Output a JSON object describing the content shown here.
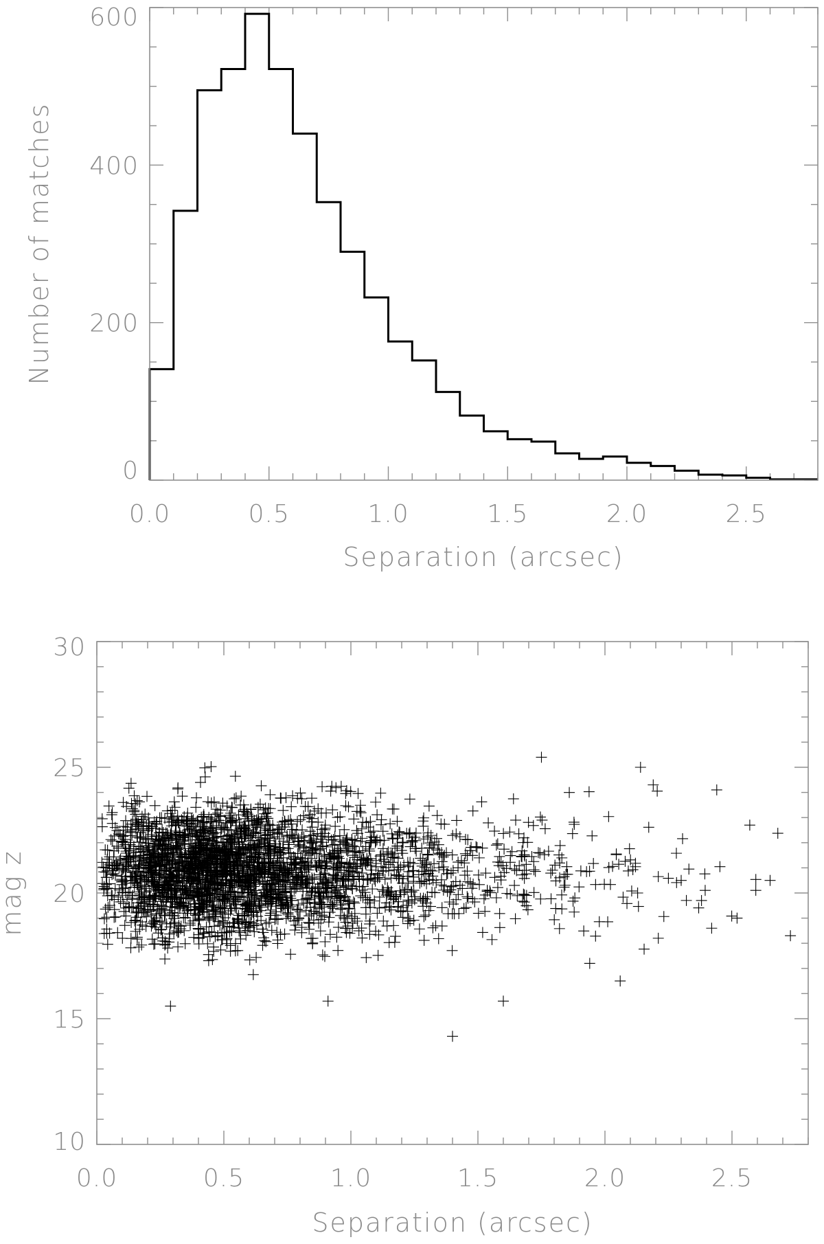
{
  "chart_data": [
    {
      "type": "bar",
      "style": "step histogram",
      "xlabel": "Separation (arcsec)",
      "ylabel": "Number of matches",
      "xlim": [
        0.0,
        2.8
      ],
      "ylim": [
        0,
        600
      ],
      "x_ticks": [
        "0.0",
        "0.5",
        "1.0",
        "1.5",
        "2.0",
        "2.5"
      ],
      "y_ticks": [
        "0",
        "200",
        "400",
        "600"
      ],
      "bin_edges": [
        0.0,
        0.1,
        0.2,
        0.3,
        0.4,
        0.5,
        0.6,
        0.7,
        0.8,
        0.9,
        1.0,
        1.1,
        1.2,
        1.3,
        1.4,
        1.5,
        1.6,
        1.7,
        1.8,
        1.9,
        2.0,
        2.1,
        2.2,
        2.3,
        2.4,
        2.5,
        2.6,
        2.7,
        2.8
      ],
      "values": [
        141,
        342,
        495,
        522,
        592,
        522,
        440,
        353,
        290,
        232,
        176,
        152,
        112,
        82,
        62,
        52,
        49,
        34,
        27,
        30,
        22,
        18,
        12,
        7,
        6,
        3,
        1,
        1
      ],
      "grid": false
    },
    {
      "type": "scatter",
      "marker": "+",
      "xlabel": "Separation (arcsec)",
      "ylabel": "mag z",
      "xlim": [
        0.0,
        2.8
      ],
      "ylim": [
        10,
        30
      ],
      "x_ticks": [
        "0.0",
        "0.5",
        "1.0",
        "1.5",
        "2.0",
        "2.5"
      ],
      "y_ticks": [
        "10",
        "15",
        "20",
        "25",
        "30"
      ],
      "approx_point_count": 3200,
      "core_region": {
        "x": [
          0.0,
          1.3
        ],
        "y": [
          16.0,
          25.3
        ],
        "y_center": 20.9
      },
      "notable_points": [
        {
          "x": 1.4,
          "y": 14.3
        },
        {
          "x": 1.6,
          "y": 15.7
        },
        {
          "x": 0.91,
          "y": 15.7
        },
        {
          "x": 0.29,
          "y": 15.5
        },
        {
          "x": 1.75,
          "y": 25.4
        },
        {
          "x": 2.73,
          "y": 18.3
        },
        {
          "x": 2.65,
          "y": 20.5
        },
        {
          "x": 2.57,
          "y": 22.7
        },
        {
          "x": 2.06,
          "y": 16.5
        },
        {
          "x": 1.94,
          "y": 17.2
        },
        {
          "x": 2.42,
          "y": 18.6
        },
        {
          "x": 2.21,
          "y": 18.2
        },
        {
          "x": 2.52,
          "y": 19.0
        },
        {
          "x": 2.38,
          "y": 19.7
        },
        {
          "x": 2.44,
          "y": 24.1
        },
        {
          "x": 2.14,
          "y": 25.0
        },
        {
          "x": 2.3,
          "y": 20.5
        },
        {
          "x": 2.19,
          "y": 24.3
        }
      ],
      "grid": false
    }
  ]
}
